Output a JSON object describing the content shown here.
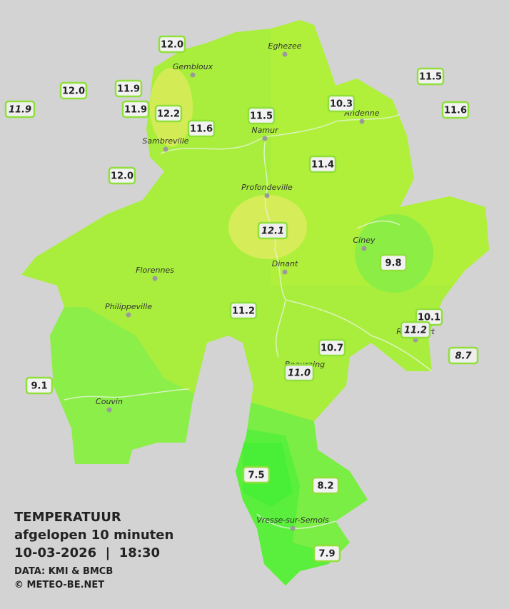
{
  "header": {
    "lines": [
      "TEMPERATUUR",
      "afgelopen 10 minuten",
      "10-03-2026  |  18:30"
    ],
    "credits": [
      "DATA: KMI & BMCB",
      "© METEO-BE.NET"
    ]
  },
  "cities": [
    {
      "name": "Eghezee"
    },
    {
      "name": "Gembloux"
    },
    {
      "name": "Andenne"
    },
    {
      "name": "Namur"
    },
    {
      "name": "Sambreville"
    },
    {
      "name": "Profondeville"
    },
    {
      "name": "Ciney"
    },
    {
      "name": "Dinant"
    },
    {
      "name": "Florennes"
    },
    {
      "name": "Philippeville"
    },
    {
      "name": "Rochefort"
    },
    {
      "name": "Beauraing"
    },
    {
      "name": "Couvin"
    },
    {
      "name": "Vresse-sur-Semois"
    }
  ],
  "stations": [
    {
      "value": "12.0"
    },
    {
      "value": "11.9"
    },
    {
      "value": "12.0"
    },
    {
      "value": "11.9",
      "italic": true
    },
    {
      "value": "11.9"
    },
    {
      "value": "12.2"
    },
    {
      "value": "11.6"
    },
    {
      "value": "11.5"
    },
    {
      "value": "10.3"
    },
    {
      "value": "11.5"
    },
    {
      "value": "11.6"
    },
    {
      "value": "12.0"
    },
    {
      "value": "11.4"
    },
    {
      "value": "12.1",
      "italic": true
    },
    {
      "value": "9.8"
    },
    {
      "value": "11.2"
    },
    {
      "value": "10.1"
    },
    {
      "value": "11.2",
      "italic": true
    },
    {
      "value": "10.7"
    },
    {
      "value": "8.7",
      "italic": true
    },
    {
      "value": "11.0",
      "italic": true
    },
    {
      "value": "9.1"
    },
    {
      "value": "7.5"
    },
    {
      "value": "8.2"
    },
    {
      "value": "7.9"
    }
  ]
}
